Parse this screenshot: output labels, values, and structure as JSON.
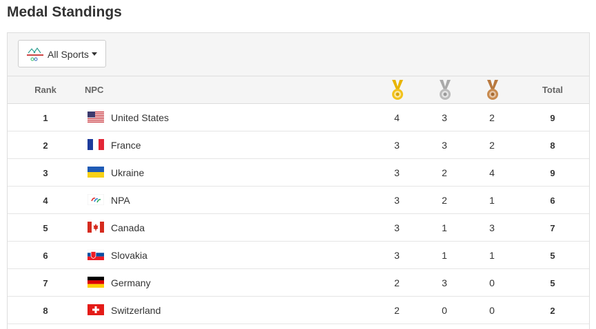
{
  "header": {
    "title": "Medal Standings"
  },
  "filter": {
    "label": "All Sports"
  },
  "table": {
    "columns": [
      "Rank",
      "NPC",
      "Total"
    ],
    "rows": [
      [
        1,
        "United States",
        4,
        3,
        2,
        9
      ],
      [
        2,
        "France",
        3,
        3,
        2,
        8
      ],
      [
        3,
        "Ukraine",
        3,
        2,
        4,
        9
      ],
      [
        4,
        "NPA",
        3,
        2,
        1,
        6
      ],
      [
        5,
        "Canada",
        3,
        1,
        3,
        7
      ],
      [
        6,
        "Slovakia",
        3,
        1,
        1,
        5
      ],
      [
        7,
        "Germany",
        2,
        3,
        0,
        5
      ],
      [
        8,
        "Switzerland",
        2,
        0,
        0,
        2
      ]
    ]
  }
}
